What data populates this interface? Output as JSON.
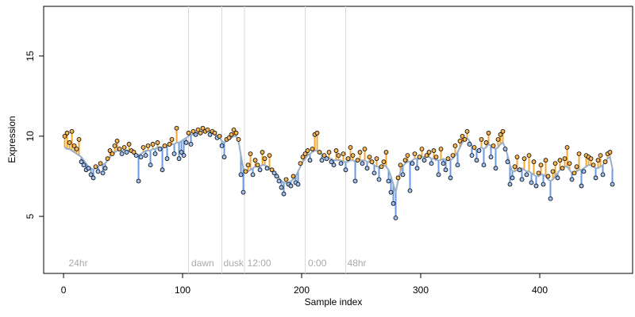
{
  "chart_data": {
    "type": "scatter",
    "xlabel": "Sample index",
    "ylabel": "Expression",
    "xlim": [
      -16.7,
      478
    ],
    "ylim": [
      1.44,
      18.1
    ],
    "xticks": [
      0,
      100,
      200,
      300,
      400
    ],
    "yticks": [
      5,
      10,
      15
    ],
    "vlines": [
      105,
      133,
      152,
      203,
      237
    ],
    "vline_color": "#d9d9d9",
    "annotations": [
      {
        "x": 3,
        "label": "24hr"
      },
      {
        "x": 106,
        "label": "dawn"
      },
      {
        "x": 133,
        "label": "dusk"
      },
      {
        "x": 153,
        "label": "12:00"
      },
      {
        "x": 204,
        "label": "0:00"
      },
      {
        "x": 237,
        "label": "48hr"
      }
    ],
    "point_color": "#f5b555",
    "above_color": "#f0a830",
    "below_color": "#6a9ae0",
    "x": [
      1,
      3,
      5,
      7,
      9,
      11,
      13,
      15,
      17,
      19,
      21,
      23,
      25,
      27,
      29,
      31,
      33,
      35,
      37,
      39,
      41,
      43,
      45,
      47,
      49,
      51,
      53,
      55,
      57,
      59,
      61,
      63,
      65,
      67,
      69,
      71,
      73,
      75,
      77,
      79,
      81,
      83,
      85,
      87,
      89,
      91,
      93,
      95,
      97,
      99,
      101,
      103,
      105,
      107,
      109,
      111,
      113,
      115,
      117,
      119,
      121,
      123,
      125,
      127,
      129,
      131,
      133,
      135,
      137,
      139,
      141,
      143,
      145,
      147,
      149,
      151,
      153,
      155,
      157,
      159,
      161,
      163,
      165,
      167,
      169,
      171,
      173,
      175,
      177,
      179,
      181,
      183,
      185,
      187,
      189,
      191,
      193,
      195,
      197,
      199,
      201,
      203,
      205,
      207,
      209,
      211,
      213,
      215,
      217,
      219,
      221,
      223,
      225,
      227,
      229,
      231,
      233,
      235,
      237,
      239,
      241,
      243,
      245,
      247,
      249,
      251,
      253,
      255,
      257,
      259,
      261,
      263,
      265,
      267,
      269,
      271,
      273,
      275,
      277,
      279,
      281,
      283,
      285,
      287,
      289,
      291,
      293,
      295,
      297,
      299,
      301,
      303,
      305,
      307,
      309,
      311,
      313,
      315,
      317,
      319,
      321,
      323,
      325,
      327,
      329,
      331,
      333,
      335,
      337,
      339,
      341,
      343,
      345,
      347,
      349,
      351,
      353,
      355,
      357,
      359,
      361,
      363,
      365,
      367,
      369,
      371,
      373,
      375,
      377,
      379,
      381,
      383,
      385,
      387,
      389,
      391,
      393,
      395,
      397,
      399,
      401,
      403,
      405,
      407,
      409,
      411,
      413,
      415,
      417,
      419,
      421,
      423,
      425,
      427,
      429,
      431,
      433,
      435,
      437,
      439,
      441,
      443,
      445,
      447,
      449,
      451,
      453,
      455,
      457,
      459,
      461
    ],
    "values": [
      10.0,
      10.2,
      9.6,
      10.3,
      9.4,
      9.2,
      9.8,
      8.4,
      8.2,
      7.9,
      8.0,
      7.6,
      7.4,
      8.1,
      7.8,
      8.3,
      7.7,
      8.0,
      8.6,
      9.1,
      8.9,
      9.4,
      9.7,
      9.2,
      8.9,
      9.3,
      9.0,
      9.5,
      9.1,
      9.0,
      8.8,
      7.2,
      8.7,
      9.3,
      8.8,
      9.4,
      8.2,
      9.5,
      8.9,
      9.6,
      9.2,
      7.9,
      9.4,
      8.6,
      9.5,
      9.8,
      8.9,
      10.5,
      8.6,
      9.0,
      8.8,
      9.6,
      10.2,
      9.5,
      10.3,
      10.1,
      10.4,
      10.2,
      10.5,
      10.3,
      10.4,
      10.1,
      10.3,
      10.2,
      9.9,
      10.0,
      9.4,
      8.7,
      9.8,
      9.9,
      10.1,
      10.4,
      10.2,
      9.8,
      7.6,
      6.5,
      7.8,
      8.2,
      8.9,
      7.6,
      8.5,
      8.2,
      7.9,
      9.0,
      8.6,
      8.0,
      8.8,
      7.9,
      7.7,
      7.5,
      7.2,
      6.8,
      6.4,
      7.3,
      7.0,
      6.9,
      7.5,
      7.1,
      7.0,
      8.3,
      8.7,
      8.9,
      9.1,
      8.5,
      9.2,
      10.1,
      10.2,
      9.0,
      8.5,
      8.8,
      8.6,
      9.0,
      8.4,
      8.2,
      9.1,
      8.8,
      8.3,
      8.9,
      7.9,
      8.6,
      9.3,
      8.8,
      7.2,
      8.5,
      9.0,
      8.3,
      9.2,
      8.0,
      8.7,
      8.4,
      7.7,
      8.6,
      7.3,
      8.1,
      8.4,
      9.0,
      7.2,
      6.5,
      5.8,
      4.9,
      7.4,
      8.2,
      7.6,
      8.5,
      8.8,
      6.6,
      8.3,
      8.9,
      8.0,
      8.7,
      9.2,
      8.5,
      8.8,
      9.0,
      8.3,
      9.1,
      8.7,
      7.6,
      9.2,
      8.3,
      7.9,
      8.6,
      7.4,
      8.8,
      9.4,
      8.2,
      9.7,
      10.0,
      9.8,
      10.3,
      9.5,
      8.8,
      9.3,
      8.5,
      9.1,
      9.8,
      8.2,
      9.6,
      10.2,
      8.7,
      9.4,
      8.0,
      9.8,
      10.1,
      10.3,
      9.2,
      8.4,
      7.0,
      7.4,
      8.1,
      8.7,
      7.9,
      7.3,
      8.6,
      7.6,
      8.8,
      7.1,
      8.4,
      6.9,
      7.7,
      8.2,
      7.0,
      8.5,
      7.5,
      6.1,
      7.8,
      8.3,
      7.4,
      8.5,
      8.0,
      8.6,
      9.3,
      8.3,
      7.3,
      7.7,
      8.1,
      8.9,
      6.9,
      7.8,
      8.8,
      8.7,
      8.6,
      8.2,
      7.4,
      8.5,
      8.8,
      7.6,
      8.4,
      8.9,
      9.0,
      7.0
    ],
    "fit": {
      "color": "#9aaec8",
      "values": [
        9.3,
        9.2,
        9.2,
        9.1,
        9.0,
        8.9,
        8.8,
        8.7,
        8.5,
        8.3,
        8.1,
        8.0,
        7.9,
        8.0,
        8.1,
        8.2,
        8.2,
        8.3,
        8.5,
        8.7,
        8.9,
        9.0,
        9.1,
        9.1,
        9.1,
        9.1,
        9.1,
        9.1,
        9.1,
        9.0,
        8.9,
        8.8,
        8.9,
        9.0,
        9.1,
        9.1,
        9.1,
        9.2,
        9.2,
        9.3,
        9.3,
        9.3,
        9.3,
        9.4,
        9.4,
        9.5,
        9.5,
        9.6,
        9.6,
        9.7,
        9.8,
        9.9,
        10.0,
        10.1,
        10.1,
        10.2,
        10.2,
        10.2,
        10.3,
        10.3,
        10.3,
        10.3,
        10.2,
        10.1,
        10.0,
        9.9,
        9.7,
        9.6,
        9.7,
        9.8,
        9.9,
        10.0,
        10.0,
        9.7,
        8.8,
        8.0,
        7.8,
        7.8,
        7.9,
        8.0,
        8.1,
        8.1,
        8.1,
        8.2,
        8.2,
        8.1,
        8.0,
        7.9,
        7.8,
        7.6,
        7.4,
        7.2,
        7.1,
        7.1,
        7.1,
        7.2,
        7.3,
        7.5,
        7.8,
        8.1,
        8.4,
        8.6,
        8.8,
        8.9,
        9.0,
        9.1,
        9.1,
        9.0,
        8.9,
        8.8,
        8.7,
        8.6,
        8.6,
        8.5,
        8.5,
        8.5,
        8.5,
        8.4,
        8.4,
        8.4,
        8.5,
        8.5,
        8.4,
        8.4,
        8.5,
        8.5,
        8.5,
        8.4,
        8.4,
        8.3,
        8.2,
        8.1,
        8.1,
        8.1,
        8.2,
        8.1,
        7.9,
        7.5,
        7.0,
        6.5,
        7.2,
        7.8,
        8.1,
        8.3,
        8.4,
        8.4,
        8.5,
        8.6,
        8.6,
        8.6,
        8.7,
        8.7,
        8.7,
        8.7,
        8.6,
        8.6,
        8.5,
        8.5,
        8.5,
        8.6,
        8.5,
        8.5,
        8.5,
        8.6,
        8.8,
        9.0,
        9.3,
        9.6,
        9.8,
        9.9,
        9.7,
        9.4,
        9.2,
        9.1,
        9.2,
        9.3,
        9.2,
        9.3,
        9.5,
        9.4,
        9.3,
        9.2,
        9.3,
        9.5,
        9.6,
        9.3,
        8.8,
        8.2,
        7.8,
        7.8,
        7.9,
        8.0,
        8.0,
        7.9,
        7.8,
        7.8,
        7.7,
        7.6,
        7.5,
        7.5,
        7.6,
        7.6,
        7.5,
        7.3,
        7.2,
        7.3,
        7.5,
        7.7,
        7.9,
        8.0,
        8.1,
        8.1,
        7.9,
        7.7,
        7.7,
        7.8,
        7.9,
        7.9,
        8.0,
        8.1,
        8.2,
        8.2,
        8.1,
        8.0,
        8.0,
        8.1,
        8.2,
        8.4,
        8.6,
        8.7,
        8.0
      ]
    }
  }
}
